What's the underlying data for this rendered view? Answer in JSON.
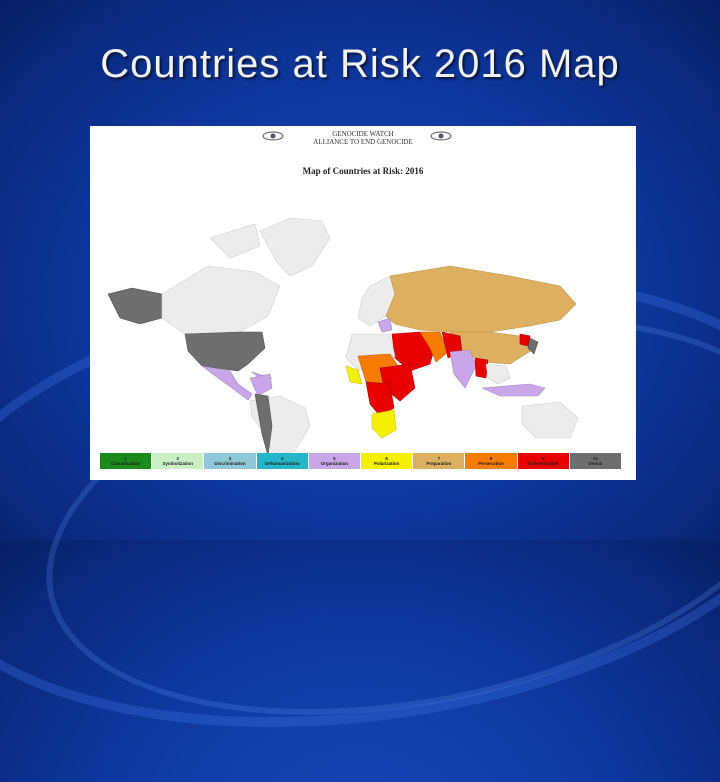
{
  "slide": {
    "title": "Countries at Risk 2016 Map"
  },
  "map": {
    "org_line1": "GENOCIDE WATCH",
    "org_line2": "ALLIANCE TO END GENOCIDE",
    "title": "Map of Countries at Risk: 2016",
    "legend": [
      {
        "num": "1",
        "label": "Classification",
        "color": "#1a8a1a"
      },
      {
        "num": "2",
        "label": "Symbolization",
        "color": "#c9f0c4"
      },
      {
        "num": "3",
        "label": "Discrimination",
        "color": "#8fc8d8"
      },
      {
        "num": "4",
        "label": "Dehumanization",
        "color": "#25b6c9"
      },
      {
        "num": "5",
        "label": "Organization",
        "color": "#c9a6e8"
      },
      {
        "num": "6",
        "label": "Polarization",
        "color": "#f4f000"
      },
      {
        "num": "7",
        "label": "Preparation",
        "color": "#dcb060"
      },
      {
        "num": "8",
        "label": "Persecution",
        "color": "#f57c00"
      },
      {
        "num": "9",
        "label": "Extermination",
        "color": "#e60000"
      },
      {
        "num": "10",
        "label": "Denial",
        "color": "#6e6e6e"
      }
    ]
  }
}
